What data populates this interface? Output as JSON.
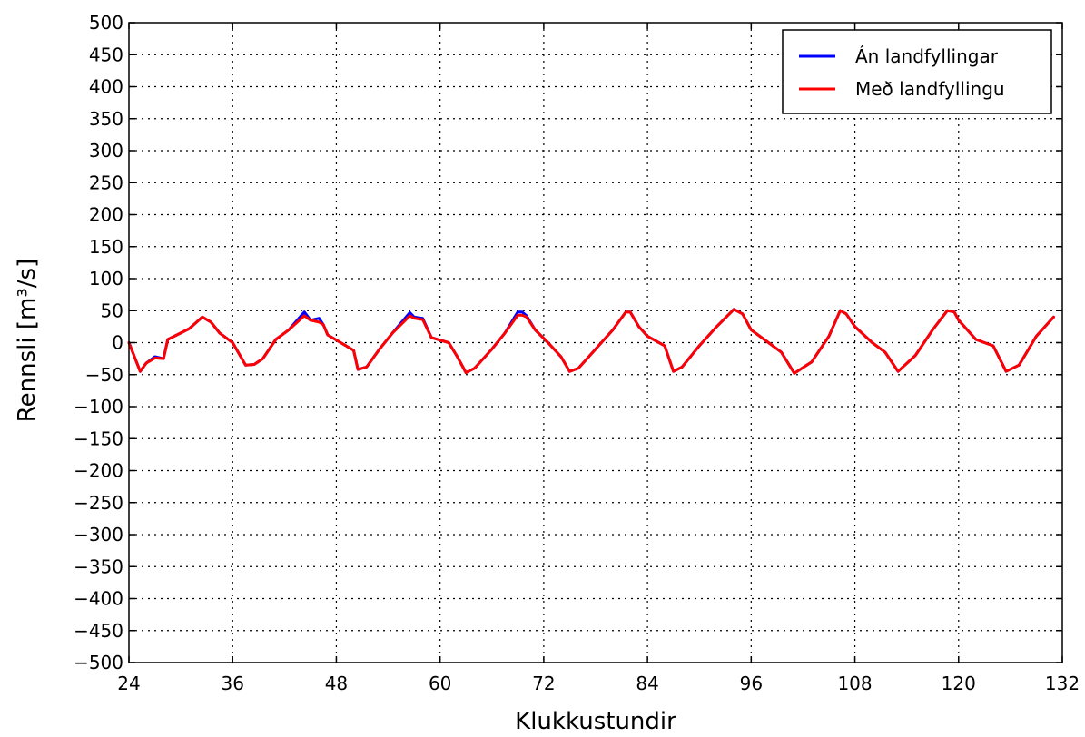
{
  "chart_data": {
    "type": "line",
    "title": "",
    "xlabel": "Klukkustundir",
    "ylabel": "Rennsli [m³/s]",
    "xlim": [
      24,
      132
    ],
    "ylim": [
      -500,
      500
    ],
    "grid": true,
    "legend_position": "top-right",
    "xticks": [
      24,
      36,
      48,
      60,
      72,
      84,
      96,
      108,
      120,
      132
    ],
    "xtick_labels": [
      "24",
      "36",
      "48",
      "60",
      "72",
      "84",
      "96",
      "108",
      "120",
      "132"
    ],
    "yticks": [
      500,
      450,
      400,
      350,
      300,
      250,
      200,
      150,
      100,
      50,
      0,
      -50,
      -100,
      -150,
      -200,
      -250,
      -300,
      -350,
      -400,
      -450,
      -500
    ],
    "ytick_labels": [
      "500",
      "450",
      "400",
      "350",
      "300",
      "250",
      "200",
      "150",
      "100",
      "50",
      "0",
      "−50",
      "−100",
      "−150",
      "−200",
      "−250",
      "−300",
      "−350",
      "−400",
      "−450",
      "−500"
    ],
    "series": [
      {
        "name": "Án landfyllingar",
        "color": "#0000ff",
        "x": [
          24,
          25.3,
          26,
          27,
          28,
          28.5,
          30,
          31,
          32.5,
          33.5,
          34.5,
          36,
          37.5,
          38.5,
          39.5,
          41,
          42.5,
          44.3,
          45,
          46,
          46.5,
          47,
          48.5,
          50,
          50.5,
          51.5,
          53,
          54.5,
          56.5,
          57,
          58,
          59,
          61,
          62,
          63,
          64,
          66,
          67.5,
          69,
          69.5,
          70,
          71,
          72.5,
          74,
          75,
          76,
          78,
          80,
          81.5,
          82,
          83,
          84,
          86,
          87,
          88,
          90,
          92,
          94,
          95,
          96,
          98,
          99.5,
          101,
          103,
          105,
          106.3,
          107,
          108,
          110,
          111.5,
          113,
          115,
          117,
          118.7,
          119.5,
          120,
          122,
          124,
          125.5,
          127,
          129,
          131
        ],
        "y": [
          0,
          -45,
          -32,
          -22,
          -25,
          5,
          15,
          22,
          40,
          32,
          15,
          0,
          -35,
          -34,
          -25,
          5,
          20,
          48,
          35,
          38,
          28,
          12,
          0,
          -12,
          -42,
          -38,
          -10,
          15,
          47,
          40,
          38,
          8,
          0,
          -22,
          -47,
          -40,
          -10,
          15,
          48,
          48,
          42,
          20,
          0,
          -22,
          -45,
          -40,
          -10,
          20,
          48,
          48,
          25,
          10,
          -5,
          -45,
          -38,
          -5,
          25,
          52,
          45,
          20,
          0,
          -15,
          -48,
          -30,
          10,
          50,
          45,
          25,
          0,
          -15,
          -45,
          -20,
          20,
          50,
          48,
          35,
          5,
          -5,
          -45,
          -35,
          10,
          40
        ]
      },
      {
        "name": "Með landfyllingu",
        "color": "#ff0000",
        "x": [
          24,
          25.3,
          26,
          27,
          28,
          28.5,
          30,
          31,
          32.5,
          33.5,
          34.5,
          36,
          37.5,
          38.5,
          39.5,
          41,
          42.5,
          44.3,
          45,
          46,
          46.5,
          47,
          48.5,
          50,
          50.5,
          51.5,
          53,
          54.5,
          56.5,
          57,
          58,
          59,
          61,
          62,
          63,
          64,
          66,
          67.5,
          69,
          69.5,
          70,
          71,
          72.5,
          74,
          75,
          76,
          78,
          80,
          81.5,
          82,
          83,
          84,
          86,
          87,
          88,
          90,
          92,
          94,
          95,
          96,
          98,
          99.5,
          101,
          103,
          105,
          106.3,
          107,
          108,
          110,
          111.5,
          113,
          115,
          117,
          118.7,
          119.5,
          120,
          122,
          124,
          125.5,
          127,
          129,
          131
        ],
        "y": [
          0,
          -45,
          -32,
          -24,
          -25,
          5,
          15,
          22,
          40,
          32,
          15,
          0,
          -35,
          -34,
          -25,
          5,
          20,
          42,
          35,
          32,
          28,
          12,
          0,
          -12,
          -42,
          -38,
          -10,
          15,
          42,
          38,
          36,
          8,
          0,
          -22,
          -47,
          -40,
          -10,
          15,
          43,
          43,
          40,
          20,
          0,
          -22,
          -45,
          -40,
          -10,
          20,
          48,
          48,
          25,
          10,
          -5,
          -45,
          -38,
          -5,
          25,
          52,
          45,
          20,
          0,
          -15,
          -48,
          -30,
          10,
          50,
          45,
          25,
          0,
          -15,
          -45,
          -20,
          20,
          50,
          48,
          35,
          5,
          -5,
          -45,
          -35,
          10,
          40
        ]
      }
    ]
  }
}
